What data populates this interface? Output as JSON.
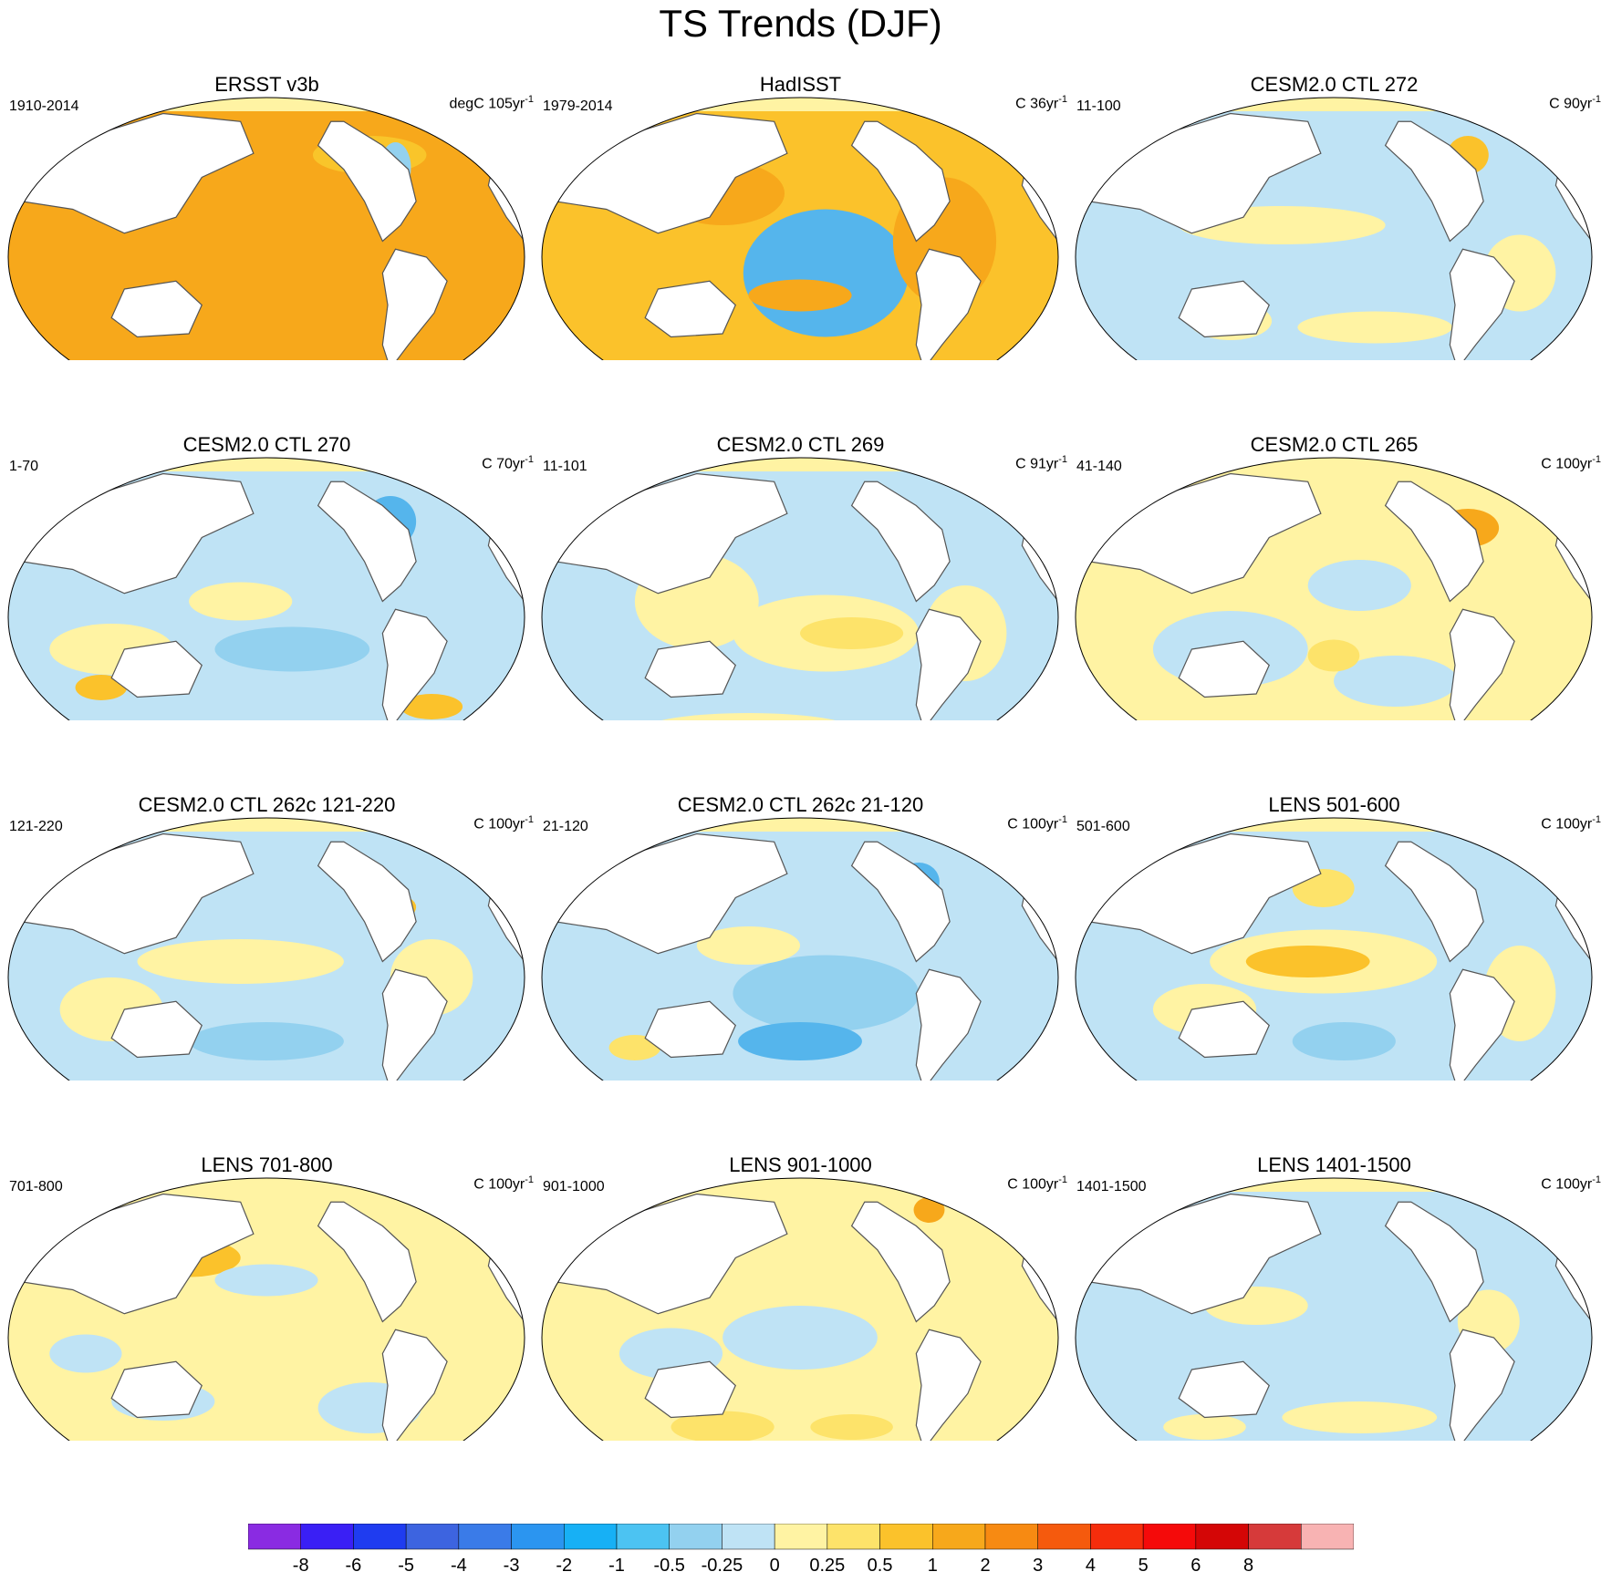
{
  "title": "TS Trends (DJF)",
  "panels": [
    {
      "title": "ERSST v3b",
      "left": "1910-2014",
      "units": "degC 105yr",
      "sup": "-1",
      "fill": "#f7a81b",
      "blobs": [
        [
          "#f9c52a",
          0.7,
          0.18,
          0.11,
          0.06
        ],
        [
          "#93d1ef",
          0.75,
          0.22,
          0.03,
          0.08
        ],
        [
          "#fde36a",
          0.5,
          0.92,
          0.3,
          0.05
        ]
      ]
    },
    {
      "title": "HadISST",
      "left": "1979-2014",
      "units": "C 36yr",
      "sup": "-1",
      "fill": "#fbc22b",
      "blobs": [
        [
          "#55b5ec",
          0.55,
          0.55,
          0.16,
          0.2
        ],
        [
          "#93d1ef",
          0.4,
          0.9,
          0.35,
          0.07
        ],
        [
          "#f7a81b",
          0.78,
          0.45,
          0.1,
          0.2
        ],
        [
          "#f7a81b",
          0.35,
          0.3,
          0.12,
          0.1
        ],
        [
          "#f7a81b",
          0.5,
          0.62,
          0.1,
          0.05
        ]
      ]
    },
    {
      "title": "CESM2.0 CTL 272",
      "left": "11-100",
      "units": "C 90yr",
      "sup": "-1",
      "fill": "#bfe3f5",
      "blobs": [
        [
          "#fff3a3",
          0.4,
          0.4,
          0.2,
          0.06
        ],
        [
          "#fff3a3",
          0.58,
          0.72,
          0.15,
          0.05
        ],
        [
          "#fbc22b",
          0.76,
          0.18,
          0.04,
          0.06
        ],
        [
          "#fff3a3",
          0.3,
          0.7,
          0.08,
          0.06
        ],
        [
          "#fff3a3",
          0.86,
          0.55,
          0.07,
          0.12
        ]
      ]
    },
    {
      "title": "CESM2.0 CTL 270",
      "left": "1-70",
      "units": "C 70yr",
      "sup": "-1",
      "fill": "#bfe3f5",
      "blobs": [
        [
          "#fff3a3",
          0.2,
          0.6,
          0.12,
          0.08
        ],
        [
          "#fbc22b",
          0.18,
          0.72,
          0.05,
          0.04
        ],
        [
          "#93d1ef",
          0.55,
          0.6,
          0.15,
          0.07
        ],
        [
          "#55b5ec",
          0.74,
          0.2,
          0.05,
          0.08
        ],
        [
          "#fbc22b",
          0.82,
          0.78,
          0.06,
          0.04
        ],
        [
          "#fff3a3",
          0.45,
          0.45,
          0.1,
          0.06
        ]
      ]
    },
    {
      "title": "CESM2.0 CTL 269",
      "left": "11-101",
      "units": "C 91yr",
      "sup": "-1",
      "fill": "#bfe3f5",
      "blobs": [
        [
          "#fff3a3",
          0.55,
          0.55,
          0.18,
          0.12
        ],
        [
          "#fde36a",
          0.6,
          0.55,
          0.1,
          0.05
        ],
        [
          "#fff3a3",
          0.3,
          0.45,
          0.12,
          0.15
        ],
        [
          "#fff3a3",
          0.82,
          0.55,
          0.08,
          0.15
        ],
        [
          "#fff3a3",
          0.4,
          0.85,
          0.2,
          0.05
        ]
      ]
    },
    {
      "title": "CESM2.0 CTL 265",
      "left": "41-140",
      "units": "C 100yr",
      "sup": "-1",
      "fill": "#fff3a3",
      "blobs": [
        [
          "#bfe3f5",
          0.3,
          0.6,
          0.15,
          0.12
        ],
        [
          "#bfe3f5",
          0.62,
          0.7,
          0.12,
          0.08
        ],
        [
          "#f7a81b",
          0.76,
          0.22,
          0.06,
          0.06
        ],
        [
          "#bfe3f5",
          0.55,
          0.4,
          0.1,
          0.08
        ],
        [
          "#fde36a",
          0.5,
          0.62,
          0.05,
          0.05
        ]
      ]
    },
    {
      "title": "CESM2.0 CTL 262c 121-220",
      "left": "121-220",
      "units": "C 100yr",
      "sup": "-1",
      "fill": "#bfe3f5",
      "blobs": [
        [
          "#fff3a3",
          0.45,
          0.45,
          0.2,
          0.07
        ],
        [
          "#fff3a3",
          0.2,
          0.6,
          0.1,
          0.1
        ],
        [
          "#93d1ef",
          0.5,
          0.7,
          0.15,
          0.06
        ],
        [
          "#fbc22b",
          0.75,
          0.28,
          0.04,
          0.04
        ],
        [
          "#fff3a3",
          0.82,
          0.5,
          0.08,
          0.12
        ]
      ]
    },
    {
      "title": "CESM2.0 CTL 262c 21-120",
      "left": "21-120",
      "units": "C 100yr",
      "sup": "-1",
      "fill": "#bfe3f5",
      "blobs": [
        [
          "#93d1ef",
          0.55,
          0.55,
          0.18,
          0.12
        ],
        [
          "#55b5ec",
          0.5,
          0.7,
          0.12,
          0.06
        ],
        [
          "#fff3a3",
          0.4,
          0.4,
          0.1,
          0.06
        ],
        [
          "#fde36a",
          0.18,
          0.72,
          0.05,
          0.04
        ],
        [
          "#55b5ec",
          0.73,
          0.2,
          0.04,
          0.06
        ],
        [
          "#fff3a3",
          0.45,
          0.88,
          0.2,
          0.04
        ]
      ]
    },
    {
      "title": "LENS 501-600",
      "left": "501-600",
      "units": "C 100yr",
      "sup": "-1",
      "fill": "#bfe3f5",
      "blobs": [
        [
          "#fff3a3",
          0.48,
          0.45,
          0.22,
          0.1
        ],
        [
          "#fbc22b",
          0.45,
          0.45,
          0.12,
          0.05
        ],
        [
          "#fde36a",
          0.48,
          0.22,
          0.06,
          0.06
        ],
        [
          "#93d1ef",
          0.52,
          0.7,
          0.1,
          0.06
        ],
        [
          "#fff3a3",
          0.86,
          0.55,
          0.07,
          0.15
        ],
        [
          "#fff3a3",
          0.25,
          0.6,
          0.1,
          0.08
        ]
      ]
    },
    {
      "title": "LENS 701-800",
      "left": "701-800",
      "units": "C 100yr",
      "sup": "-1",
      "fill": "#fff3a3",
      "blobs": [
        [
          "#fbc22b",
          0.35,
          0.25,
          0.1,
          0.06
        ],
        [
          "#bfe3f5",
          0.5,
          0.32,
          0.1,
          0.05
        ],
        [
          "#bfe3f5",
          0.3,
          0.7,
          0.1,
          0.06
        ],
        [
          "#bfe3f5",
          0.7,
          0.72,
          0.1,
          0.08
        ],
        [
          "#bfe3f5",
          0.15,
          0.55,
          0.07,
          0.06
        ]
      ]
    },
    {
      "title": "LENS 901-1000",
      "left": "901-1000",
      "units": "C 100yr",
      "sup": "-1",
      "fill": "#fff3a3",
      "blobs": [
        [
          "#bfe3f5",
          0.5,
          0.5,
          0.15,
          0.1
        ],
        [
          "#bfe3f5",
          0.25,
          0.55,
          0.1,
          0.08
        ],
        [
          "#fde36a",
          0.35,
          0.78,
          0.1,
          0.05
        ],
        [
          "#fde36a",
          0.6,
          0.78,
          0.08,
          0.04
        ],
        [
          "#f7a81b",
          0.75,
          0.1,
          0.03,
          0.04
        ]
      ]
    },
    {
      "title": "LENS 1401-1500",
      "left": "1401-1500",
      "units": "C 100yr",
      "sup": "-1",
      "fill": "#bfe3f5",
      "blobs": [
        [
          "#fff3a3",
          0.35,
          0.4,
          0.1,
          0.06
        ],
        [
          "#fff3a3",
          0.55,
          0.75,
          0.15,
          0.05
        ],
        [
          "#fff3a3",
          0.8,
          0.45,
          0.06,
          0.1
        ],
        [
          "#fff3a3",
          0.25,
          0.78,
          0.08,
          0.04
        ]
      ]
    }
  ],
  "colorbar": {
    "colors": [
      "#8a2be2",
      "#3a1ff5",
      "#1f3cf0",
      "#3d64e0",
      "#3a7be8",
      "#2b95f0",
      "#17b0f5",
      "#4cc3f2",
      "#93d1ef",
      "#bfe3f5",
      "#fff3a3",
      "#fde36a",
      "#fbc22b",
      "#f7a81b",
      "#f78a12",
      "#f55a0d",
      "#f52d0c",
      "#f50a0a",
      "#d40606",
      "#d63a3a",
      "#f8b3b3"
    ],
    "labels": [
      "-8",
      "-6",
      "-5",
      "-4",
      "-3",
      "-2",
      "-1",
      "-0.5",
      "-0.25",
      "0",
      "0.25",
      "0.5",
      "1",
      "2",
      "3",
      "4",
      "5",
      "6",
      "8"
    ]
  }
}
